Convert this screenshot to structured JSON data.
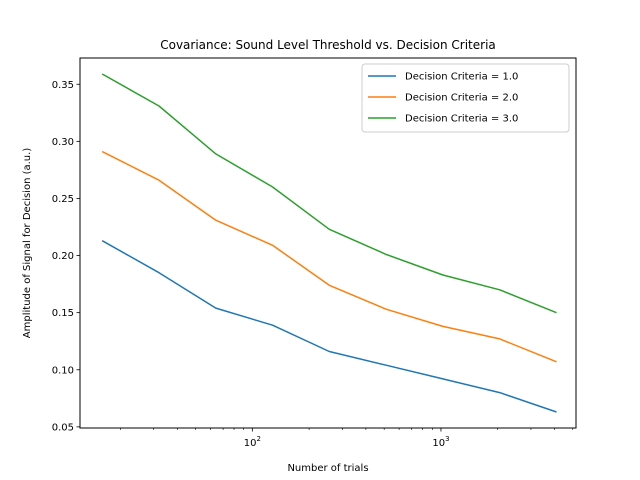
{
  "chart_data": {
    "type": "line",
    "title": "Covariance: Sound Level Threshold vs. Decision Criteria",
    "xlabel": "Number of trials",
    "ylabel": "Amplitude of Signal for Decision (a.u.)",
    "xscale": "log",
    "xlim": [
      12.2,
      5200
    ],
    "ylim": [
      0.049,
      0.373
    ],
    "x": [
      16,
      32,
      64,
      128,
      256,
      512,
      1024,
      2048,
      4096
    ],
    "x_tick_labels": [
      {
        "value": 100,
        "base": "10",
        "exp": "2"
      },
      {
        "value": 1000,
        "base": "10",
        "exp": "3"
      }
    ],
    "y_ticks": [
      0.05,
      0.1,
      0.15,
      0.2,
      0.25,
      0.3,
      0.35
    ],
    "y_tick_labels": [
      "0.05",
      "0.10",
      "0.15",
      "0.20",
      "0.25",
      "0.30",
      "0.35"
    ],
    "legend_position": "upper-right",
    "grid": false,
    "series": [
      {
        "name": "Decision Criteria = 1.0",
        "color": "#1f77b4",
        "values": [
          0.213,
          0.185,
          0.154,
          0.139,
          0.116,
          0.104,
          0.092,
          0.08,
          0.063
        ]
      },
      {
        "name": "Decision Criteria = 2.0",
        "color": "#ff7f0e",
        "values": [
          0.291,
          0.266,
          0.231,
          0.209,
          0.174,
          0.153,
          0.138,
          0.127,
          0.107
        ]
      },
      {
        "name": "Decision Criteria = 3.0",
        "color": "#2ca02c",
        "values": [
          0.359,
          0.331,
          0.289,
          0.26,
          0.223,
          0.201,
          0.183,
          0.17,
          0.15
        ]
      }
    ]
  }
}
